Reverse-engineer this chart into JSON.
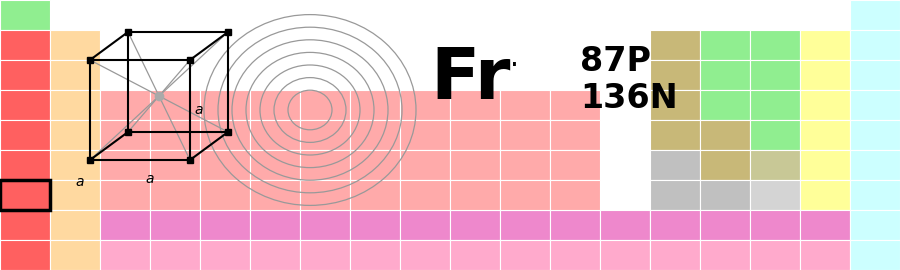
{
  "fig_width": 9.0,
  "fig_height": 2.7,
  "dpi": 100,
  "bg_color": "#ffffff",
  "col1_top_color": "#90ee90",
  "col1_color": "#ff6060",
  "col2_color": "#ffd9a0",
  "pink_d_color": "#ffaaaa",
  "pink_f_color": "#ff99cc",
  "pink_f2_color": "#ffaacc",
  "lt_pink_color": "#ffbbbb",
  "green_color": "#90ee90",
  "yellow_color": "#ffff99",
  "tan_color": "#c8b878",
  "gray_color": "#c0c0c0",
  "lt_gray_color": "#d4d4d4",
  "cyan_color": "#ccffff",
  "khaki_color": "#c8c896",
  "fr_symbol": "Fr",
  "fr_valence_dot": "·",
  "protons_text": "87P",
  "neutrons_text": "136N",
  "cube_color": "#000000",
  "diag_color": "#999999",
  "circle_color": "#999999"
}
